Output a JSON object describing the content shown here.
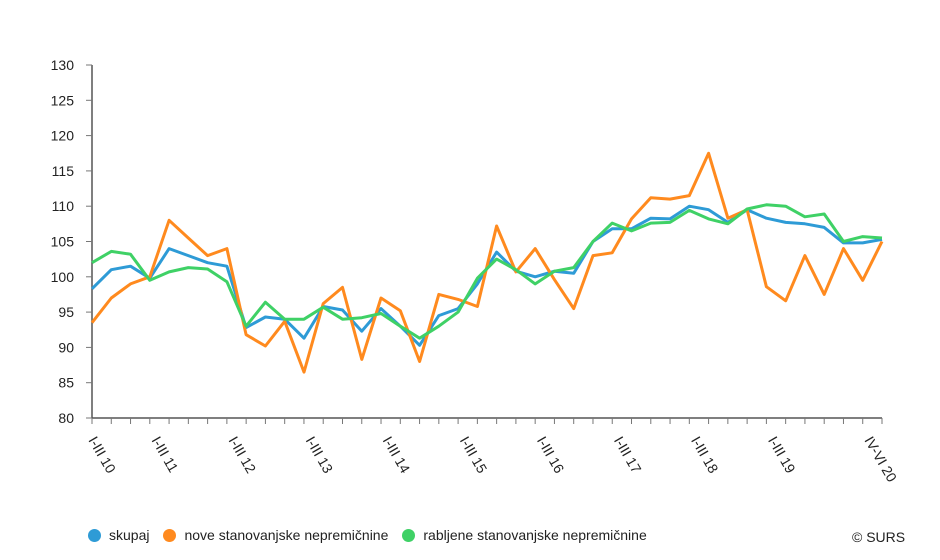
{
  "chart_data": {
    "type": "line",
    "ylim": [
      80,
      130
    ],
    "yticks": [
      80,
      85,
      90,
      95,
      100,
      105,
      110,
      115,
      120,
      125,
      130
    ],
    "x_tick_labels": [
      {
        "at": 0,
        "label": "I-III 10"
      },
      {
        "at": 4,
        "label": "I-III 11"
      },
      {
        "at": 8,
        "label": "I-III 12"
      },
      {
        "at": 12,
        "label": "I-III 13"
      },
      {
        "at": 16,
        "label": "I-III 14"
      },
      {
        "at": 20,
        "label": "I-III 15"
      },
      {
        "at": 24,
        "label": "I-III 16"
      },
      {
        "at": 28,
        "label": "I-III 17"
      },
      {
        "at": 32,
        "label": "I-III 18"
      },
      {
        "at": 36,
        "label": "I-III 19"
      },
      {
        "at": 41,
        "label": "IV-VI 20"
      }
    ],
    "grid": false,
    "legend_position": "bottom",
    "series": [
      {
        "name": "skupaj",
        "color": "#2E9BD6",
        "values": [
          98.3,
          101,
          101.5,
          99.8,
          104,
          103,
          102,
          101.5,
          92.8,
          94.3,
          94,
          91.3,
          95.8,
          95.3,
          92.3,
          95.5,
          93,
          90.3,
          94.5,
          95.5,
          99,
          103.5,
          100.8,
          100,
          100.8,
          100.5,
          105,
          106.8,
          106.8,
          108.3,
          108.2,
          110,
          109.5,
          107.7,
          109.5,
          108.3,
          107.7,
          107.5,
          107,
          104.8,
          104.8,
          105.3
        ]
      },
      {
        "name": "nove stanovanjske nepremičnine",
        "color": "#FF8A1E",
        "values": [
          93.5,
          97,
          99,
          100,
          108,
          105.5,
          103,
          104,
          91.8,
          90.2,
          93.7,
          86.5,
          96.2,
          98.5,
          88.3,
          97,
          95.2,
          88,
          97.5,
          96.8,
          95.8,
          107.2,
          100.7,
          104,
          99.6,
          95.5,
          103,
          103.4,
          108.2,
          111.2,
          111,
          111.5,
          117.5,
          108.3,
          109.5,
          98.6,
          96.6,
          103,
          97.5,
          104,
          99.5,
          105
        ]
      },
      {
        "name": "rabljene stanovanjske nepremičnine",
        "color": "#3FD166",
        "values": [
          102,
          103.6,
          103.2,
          99.5,
          100.7,
          101.3,
          101.1,
          99.3,
          93,
          96.4,
          94,
          94,
          95.7,
          94,
          94.2,
          94.8,
          93,
          91.3,
          93,
          95,
          99.8,
          102.5,
          101,
          99,
          100.8,
          101.3,
          105,
          107.6,
          106.5,
          107.6,
          107.7,
          109.4,
          108.2,
          107.5,
          109.6,
          110.2,
          110,
          108.5,
          108.9,
          105,
          105.7,
          105.5
        ]
      }
    ]
  },
  "credit": "© SURS"
}
